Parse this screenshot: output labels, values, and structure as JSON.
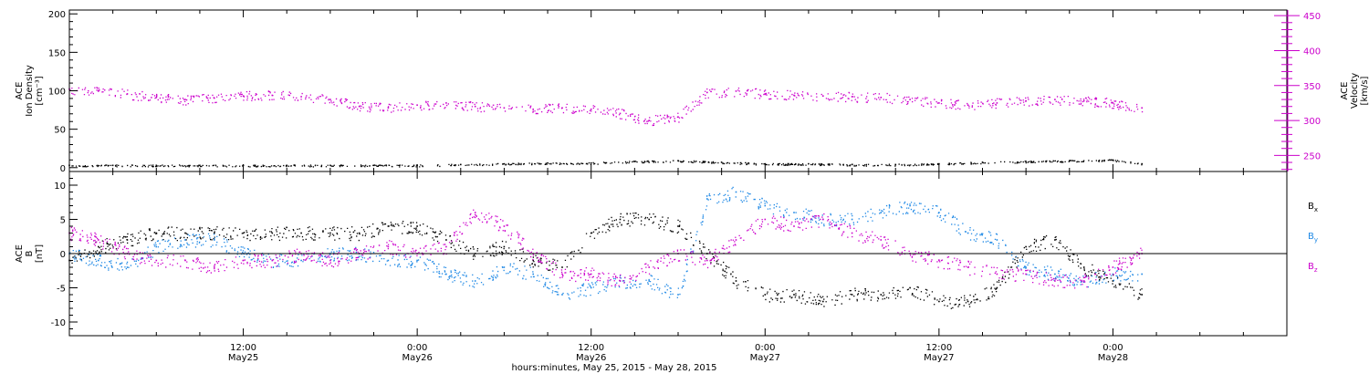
{
  "chart_data": [
    {
      "type": "scatter",
      "panel": "ace-density-velocity",
      "ylabel_left": [
        "ACE",
        "Ion Density",
        "[cm⁻³]"
      ],
      "ylabel_right": [
        "ACE",
        "Velocity",
        "[km/s]"
      ],
      "ylim_left": [
        -5,
        205
      ],
      "yticks_left": [
        "0",
        "50",
        "100",
        "150",
        "200"
      ],
      "yticks_left_values": [
        0,
        50,
        100,
        150,
        200
      ],
      "ylim_right": [
        227,
        458
      ],
      "yticks_right": [
        "250",
        "300",
        "350",
        "400",
        "450"
      ],
      "yticks_right_values": [
        250,
        300,
        350,
        400,
        450
      ],
      "series": [
        {
          "name": "Ion Density",
          "axis": "left",
          "color": "#000000",
          "x": [
            0,
            3,
            6,
            9,
            12,
            15,
            18,
            21,
            24,
            27,
            30,
            33,
            36,
            39,
            42,
            45,
            48,
            51,
            54,
            57,
            60,
            63,
            66,
            69,
            72,
            74
          ],
          "y": [
            3,
            3,
            3,
            3,
            3,
            3,
            3,
            3,
            3,
            4,
            5,
            6,
            6,
            8,
            9,
            7,
            5,
            5,
            4,
            4,
            5,
            7,
            8,
            9,
            10,
            5
          ]
        },
        {
          "name": "Velocity",
          "axis": "right",
          "color": "#cc00cc",
          "x": [
            0,
            2,
            4,
            6,
            8,
            10,
            12,
            14,
            16,
            18,
            20,
            22,
            24,
            26,
            28,
            30,
            32,
            34,
            36,
            38,
            40,
            42,
            44,
            46,
            48,
            50,
            52,
            54,
            56,
            58,
            60,
            62,
            64,
            66,
            68,
            70,
            72,
            74
          ],
          "y": [
            345,
            342,
            338,
            333,
            330,
            332,
            335,
            336,
            334,
            330,
            320,
            318,
            322,
            325,
            320,
            318,
            316,
            318,
            316,
            310,
            300,
            305,
            340,
            342,
            338,
            336,
            335,
            334,
            333,
            330,
            325,
            322,
            325,
            328,
            330,
            328,
            325,
            318
          ]
        }
      ]
    },
    {
      "type": "scatter",
      "panel": "ace-magnetic-field",
      "ylabel_left": [
        "ACE",
        "B",
        "[nT]"
      ],
      "ylim_left": [
        -12,
        12
      ],
      "yticks_left": [
        "-10",
        "-5",
        "0",
        "5",
        "10"
      ],
      "yticks_left_values": [
        -10,
        -5,
        0,
        5,
        10
      ],
      "zero_line": true,
      "series": [
        {
          "name": "Bx",
          "color": "#000000",
          "x": [
            0,
            2,
            4,
            6,
            8,
            10,
            12,
            14,
            16,
            18,
            20,
            22,
            24,
            26,
            28,
            30,
            32,
            34,
            36,
            38,
            40,
            42,
            44,
            46,
            48,
            50,
            52,
            54,
            56,
            58,
            60,
            62,
            64,
            66,
            68,
            70,
            72,
            74
          ],
          "y": [
            -1,
            1,
            2,
            3,
            3,
            3,
            3,
            3,
            3,
            3,
            3,
            4,
            4,
            2,
            0,
            1,
            -1,
            -2,
            3,
            5,
            5,
            4,
            0,
            -4,
            -6,
            -6,
            -7,
            -6,
            -6,
            -5,
            -7,
            -7,
            -5,
            1,
            2,
            -2,
            -4,
            -6
          ]
        },
        {
          "name": "By",
          "color": "#1e88e5",
          "x": [
            0,
            2,
            4,
            6,
            8,
            10,
            12,
            14,
            16,
            18,
            20,
            22,
            24,
            26,
            28,
            30,
            32,
            34,
            36,
            38,
            40,
            42,
            44,
            46,
            48,
            50,
            52,
            54,
            56,
            58,
            60,
            62,
            64,
            66,
            68,
            70,
            72,
            74
          ],
          "y": [
            0,
            -1,
            -2,
            1,
            2,
            2,
            0,
            -1,
            -1,
            0,
            0,
            -1,
            -1,
            -3,
            -4,
            -2,
            -3,
            -6,
            -5,
            -4,
            -4,
            -6,
            8,
            9,
            7,
            6,
            5,
            5,
            6,
            7,
            6,
            3,
            2,
            -2,
            -3,
            -4,
            -3,
            -3
          ]
        },
        {
          "name": "Bz",
          "color": "#cc00cc",
          "x": [
            0,
            2,
            4,
            6,
            8,
            10,
            12,
            14,
            16,
            18,
            20,
            22,
            24,
            26,
            28,
            30,
            32,
            34,
            36,
            38,
            40,
            42,
            44,
            46,
            48,
            50,
            52,
            54,
            56,
            58,
            60,
            62,
            64,
            66,
            68,
            70,
            72,
            74
          ],
          "y": [
            3,
            2,
            0,
            -1,
            -1,
            -2,
            -1,
            -1,
            0,
            -1,
            0,
            1,
            0,
            1,
            6,
            4,
            0,
            -3,
            -3,
            -4,
            -2,
            0,
            -1,
            2,
            5,
            4,
            5,
            3,
            2,
            0,
            -1,
            -2,
            -3,
            -3,
            -4,
            -4,
            -2,
            0
          ]
        }
      ],
      "legend": [
        {
          "label": "B",
          "sub": "x",
          "color": "#000000"
        },
        {
          "label": "B",
          "sub": "y",
          "color": "#1e88e5"
        },
        {
          "label": "B",
          "sub": "z",
          "color": "#cc00cc"
        }
      ]
    }
  ],
  "x_axis": {
    "unit": "hours since start",
    "range_hours": [
      0,
      84
    ],
    "ticks": [
      {
        "hours": 12,
        "time": "12:00",
        "date": "May25"
      },
      {
        "hours": 24,
        "time": "0:00",
        "date": "May26"
      },
      {
        "hours": 36,
        "time": "12:00",
        "date": "May26"
      },
      {
        "hours": 48,
        "time": "0:00",
        "date": "May27"
      },
      {
        "hours": 60,
        "time": "12:00",
        "date": "May27"
      },
      {
        "hours": 72,
        "time": "0:00",
        "date": "May28"
      }
    ],
    "xlabel": "hours:minutes, May 25, 2015 - May 28, 2015"
  },
  "colors": {
    "axis": "#000000",
    "velocity_axis": "#cc00cc"
  }
}
